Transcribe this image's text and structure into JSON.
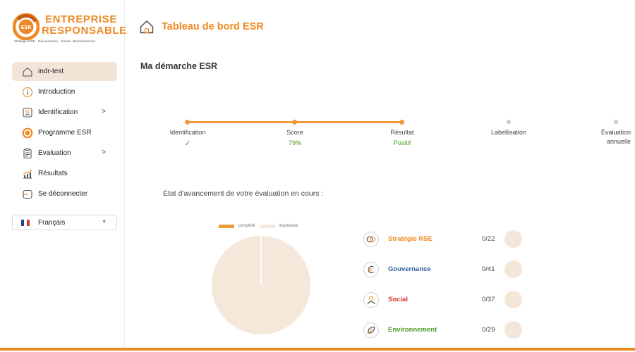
{
  "brand": {
    "line1": "ENTREPRISE",
    "line2": "RESPONSABLE",
    "mark": "ESR",
    "tagline": "Stratégie RSE · Gouvernance · Social · Environnement",
    "accent": "#ee8a24"
  },
  "sidebar": {
    "items": [
      {
        "label": "indr-test",
        "icon": "home-icon",
        "active": true
      },
      {
        "label": "Introduction",
        "icon": "info-icon"
      },
      {
        "label": "Identification",
        "icon": "id-card-icon",
        "chevron": ">"
      },
      {
        "label": "Programme ESR",
        "icon": "esr-logo-icon"
      },
      {
        "label": "Evaluation",
        "icon": "clipboard-icon",
        "chevron": ">"
      },
      {
        "label": "Résultats",
        "icon": "trend-chart-icon"
      },
      {
        "label": "Se déconnecter",
        "icon": "logout-icon"
      }
    ],
    "language": {
      "selected": "Français",
      "caret": "▼"
    }
  },
  "header": {
    "title": "Tableau de bord ESR"
  },
  "main": {
    "section_title": "Ma démarche ESR",
    "steps": [
      {
        "label": "Identification",
        "value": "✓",
        "done": true
      },
      {
        "label": "Score",
        "value": "79%",
        "done": true
      },
      {
        "label": "Résultat",
        "value": "Positif",
        "done": true
      },
      {
        "label": "Labellisation",
        "value": "",
        "done": false
      },
      {
        "label": "Évaluation annuelle",
        "value": "",
        "done": false
      }
    ],
    "progress_title": "État d'avancement de votre évaluation en cours :",
    "legend": {
      "complete": "complété",
      "incomplete": "inachevée"
    },
    "pie": {
      "complete_fraction": 0.0
    }
  },
  "categories": [
    {
      "name": "Stratégie RSE",
      "score": "0/22",
      "color": "#ee8a24",
      "icon": "rings-icon"
    },
    {
      "name": "Gouvernance",
      "score": "0/41",
      "color": "#2f5f9e",
      "icon": "euro-icon"
    },
    {
      "name": "Social",
      "score": "0/37",
      "color": "#d0322d",
      "icon": "person-icon"
    },
    {
      "name": "Environnement",
      "score": "0/29",
      "color": "#4f9a2a",
      "icon": "leaf-icon"
    }
  ],
  "colors": {
    "complete": "#ee9a3a",
    "incomplete": "#f5e7da",
    "step_done": "#ee9a3a",
    "step_todo": "#cccccc",
    "step_value": "#4a9c2e"
  }
}
